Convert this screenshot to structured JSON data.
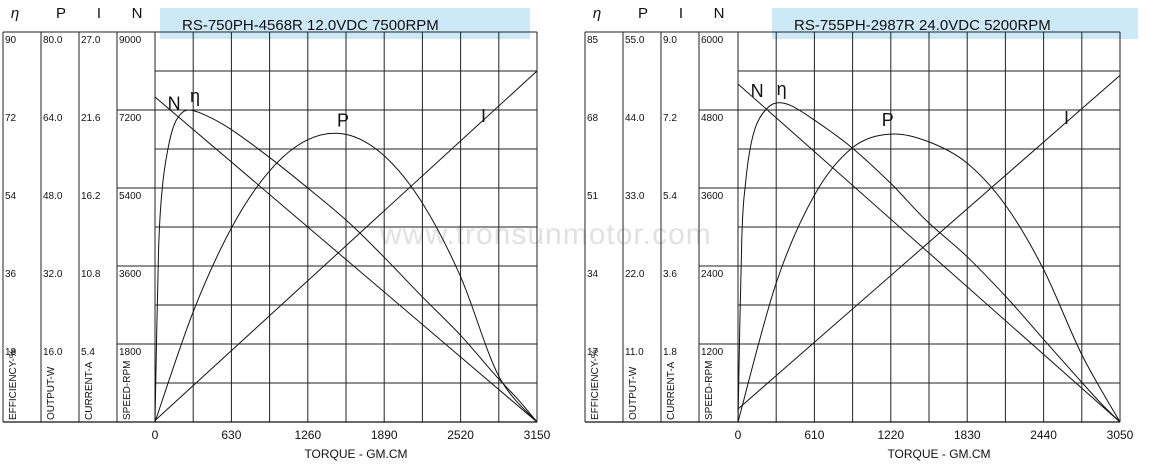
{
  "watermark": "www.tronsunmotor.com",
  "chart_data": [
    {
      "type": "line",
      "title": "RS-750PH-4568R   12.0VDC  7500RPM",
      "xlabel": "TORQUE - GM.CM",
      "x_ticks": [
        "0",
        "630",
        "1260",
        "1890",
        "2520",
        "3150"
      ],
      "xlim": [
        0,
        3150
      ],
      "column_headers": [
        "η",
        "P",
        "I",
        "N"
      ],
      "axis_names": [
        "EFFICIENCY-%",
        "OUTPUT-W",
        "CURRENT-A",
        "SPEED-RPM"
      ],
      "efficiency_ticks": [
        "90",
        "72",
        "54",
        "36",
        "18"
      ],
      "output_ticks": [
        "80.0",
        "64.0",
        "48.0",
        "32.0",
        "16.0"
      ],
      "current_ticks": [
        "27.0",
        "21.6",
        "16.2",
        "10.8",
        "5.4"
      ],
      "speed_ticks": [
        "9000",
        "7200",
        "5400",
        "3600",
        "1800"
      ],
      "axes": {
        "efficiency": {
          "min": 0,
          "max": 90
        },
        "output": {
          "min": 0,
          "max": 80
        },
        "current": {
          "min": 0,
          "max": 27
        },
        "speed": {
          "min": 0,
          "max": 9000
        }
      },
      "series": [
        {
          "name": "N",
          "axis": "speed",
          "x": [
            0,
            3150
          ],
          "y": [
            7500,
            0
          ]
        },
        {
          "name": "I",
          "axis": "current",
          "x": [
            0,
            3150
          ],
          "y": [
            0.1,
            24.3
          ]
        },
        {
          "name": "P",
          "axis": "output",
          "x": [
            0,
            315,
            630,
            945,
            1260,
            1575,
            1890,
            2205,
            2520,
            2835,
            3150
          ],
          "y": [
            0,
            22.6,
            39.8,
            51.5,
            57.9,
            59.0,
            54.6,
            44.9,
            29.8,
            9.4,
            0
          ]
        },
        {
          "name": "η",
          "axis": "efficiency",
          "x": [
            0,
            30,
            60,
            100,
            150,
            210,
            280,
            400,
            600,
            900,
            1260,
            1600,
            1890,
            2200,
            2520,
            2800,
            3000,
            3150
          ],
          "y": [
            0,
            40,
            54,
            62,
            68,
            71,
            72,
            71,
            68,
            62,
            54,
            46,
            38,
            29,
            20,
            11,
            5,
            0
          ]
        }
      ]
    },
    {
      "type": "line",
      "title": "RS-755PH-2987R   24.0VDC   5200RPM",
      "xlabel": "TORQUE - GM.CM",
      "x_ticks": [
        "0",
        "610",
        "1220",
        "1830",
        "2440",
        "3050"
      ],
      "xlim": [
        0,
        3050
      ],
      "column_headers": [
        "η",
        "P",
        "I",
        "N"
      ],
      "axis_names": [
        "EFFICIENCY-%",
        "OUTPUT-W",
        "CURRENT-A",
        "SPEED-RPM"
      ],
      "efficiency_ticks": [
        "85",
        "68",
        "51",
        "34",
        "17"
      ],
      "output_ticks": [
        "55.0",
        "44.0",
        "33.0",
        "22.0",
        "11.0"
      ],
      "current_ticks": [
        "9.0",
        "7.2",
        "5.4",
        "3.6",
        "1.8"
      ],
      "speed_ticks": [
        "6000",
        "4800",
        "3600",
        "2400",
        "1200"
      ],
      "axes": {
        "efficiency": {
          "min": 0,
          "max": 85
        },
        "output": {
          "min": 0,
          "max": 55
        },
        "current": {
          "min": 0,
          "max": 9
        },
        "speed": {
          "min": 0,
          "max": 6000
        }
      },
      "series": [
        {
          "name": "N",
          "axis": "speed",
          "x": [
            0,
            3050
          ],
          "y": [
            5200,
            0
          ]
        },
        {
          "name": "I",
          "axis": "current",
          "x": [
            0,
            3050
          ],
          "y": [
            0.3,
            8.0
          ]
        },
        {
          "name": "P",
          "axis": "output",
          "x": [
            0,
            305,
            610,
            915,
            1220,
            1525,
            1830,
            2135,
            2440,
            2745,
            3050
          ],
          "y": [
            0,
            19.6,
            32.0,
            38.7,
            40.6,
            39.5,
            36.5,
            30.6,
            21.5,
            9.5,
            0
          ]
        },
        {
          "name": "η",
          "axis": "efficiency",
          "x": [
            0,
            30,
            60,
            100,
            150,
            220,
            300,
            420,
            600,
            900,
            1220,
            1500,
            1830,
            2150,
            2440,
            2700,
            2900,
            3050
          ],
          "y": [
            0,
            40,
            52,
            60,
            65,
            68,
            69.5,
            69,
            66,
            60,
            52,
            44,
            36,
            27,
            18,
            10,
            4,
            0
          ]
        }
      ]
    }
  ]
}
